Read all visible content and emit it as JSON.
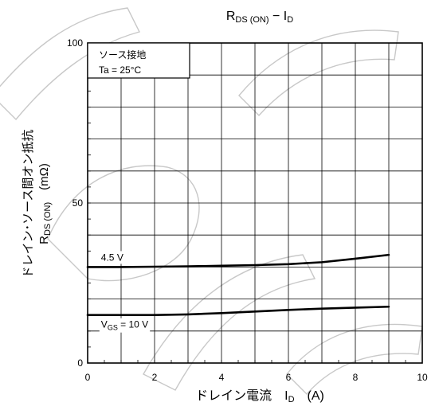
{
  "chart_data": {
    "type": "line",
    "title": {
      "main": "R",
      "main_sub": "DS (ON)",
      "sep": " − I",
      "tail_sub": "D"
    },
    "xlabel": {
      "text": "ドレイン電流　I",
      "sub": "D",
      "unit": "　(A)"
    },
    "ylabel": {
      "line1": "ドレイン･ソース間オン抵抗",
      "sym": "R",
      "sub": "DS (ON)",
      "unit": "　(mΩ)"
    },
    "xlim": [
      0,
      10
    ],
    "ylim": [
      0,
      100
    ],
    "x_ticks": [
      "0",
      "2",
      "4",
      "6",
      "8",
      "10"
    ],
    "y_ticks": [
      "0",
      "50",
      "100"
    ],
    "grid": true,
    "condition_box": {
      "line1": "ソース接地",
      "line2": "Ta = 25°C"
    },
    "series": [
      {
        "name": "4.5 V",
        "label": {
          "text": "4.5 V"
        },
        "x": [
          0,
          1,
          2,
          3,
          4,
          5,
          6,
          7,
          8,
          9
        ],
        "y": [
          30.0,
          30.0,
          30.1,
          30.2,
          30.4,
          30.6,
          30.9,
          31.5,
          32.6,
          33.8
        ]
      },
      {
        "name": "VGS = 10 V",
        "label": {
          "sym": "V",
          "sub": "GS",
          "rest": " = 10 V"
        },
        "x": [
          0,
          1,
          2,
          3,
          4,
          5,
          6,
          7,
          8,
          9
        ],
        "y": [
          15.0,
          15.0,
          15.0,
          15.2,
          15.6,
          16.1,
          16.6,
          17.0,
          17.3,
          17.6
        ]
      }
    ]
  }
}
